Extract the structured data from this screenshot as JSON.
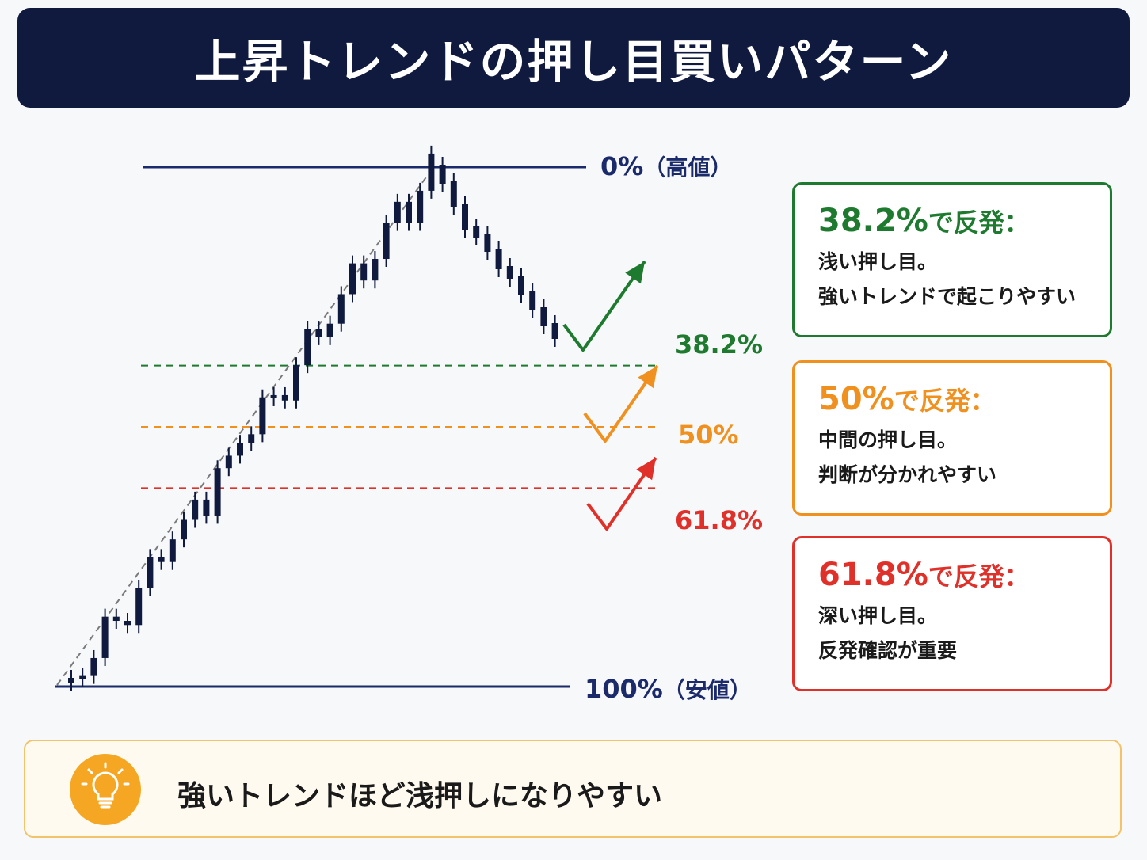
{
  "title": "上昇トレンドの押し目買いパターン",
  "levels": {
    "top": {
      "pct": "0%",
      "note": "（高値）"
    },
    "l382": "38.2%",
    "l50": "50%",
    "l618": "61.8%",
    "bottom": {
      "pct": "100%",
      "note": "（安値）"
    }
  },
  "cards": [
    {
      "pct": "38.2%",
      "suffix": "で反発：",
      "line1": "浅い押し目。",
      "line2": "強いトレンドで起こりやすい"
    },
    {
      "pct": "50%",
      "suffix": "で反発：",
      "line1": "中間の押し目。",
      "line2": "判断が分かれやすい"
    },
    {
      "pct": "61.8%",
      "suffix": "で反発：",
      "line1": "深い押し目。",
      "line2": "反発確認が重要"
    }
  ],
  "tip": {
    "icon": "lightbulb-icon",
    "text": "強いトレンドほど浅押しになりやすい"
  },
  "colors": {
    "navy": "#1b2a6b",
    "green": "#1e7a2e",
    "orange": "#f0901e",
    "red": "#e0302a",
    "candle": "#0f1a3e",
    "title_bg": "#0f1a3e"
  },
  "chart_data": {
    "type": "diagram",
    "retracement_levels": [
      0,
      38.2,
      50,
      61.8,
      100
    ]
  }
}
